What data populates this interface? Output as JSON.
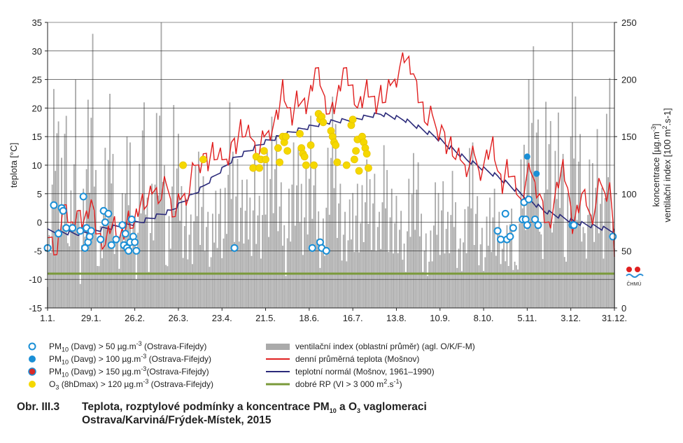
{
  "chart_data": {
    "type": "combo",
    "x_ticks": [
      "1.1.",
      "29.1.",
      "26.2.",
      "26.3.",
      "23.4.",
      "21.5.",
      "18.6.",
      "16.7.",
      "13.8.",
      "10.9.",
      "8.10.",
      "5.11.",
      "3.12.",
      "31.12."
    ],
    "x_tick_days": [
      1,
      29,
      57,
      85,
      113,
      141,
      169,
      197,
      225,
      253,
      281,
      309,
      337,
      365
    ],
    "y_left": {
      "label": "teplota [°C]",
      "ylim": [
        -15,
        35
      ],
      "ticks": [
        -15,
        -10,
        -5,
        0,
        5,
        10,
        15,
        20,
        25,
        30,
        35
      ]
    },
    "y_right": {
      "label_line1": "koncentrace [µg.m-3]",
      "label_line2": "ventilační index [100 m2.s-1]",
      "ylim": [
        0,
        250
      ],
      "ticks": [
        0,
        50,
        100,
        150,
        200,
        250
      ]
    },
    "grid": true,
    "good_dispersion_threshold": {
      "value_vi": 30,
      "color": "#7a9a3a"
    },
    "temperature_daily_anchors": [
      [
        1,
        -2
      ],
      [
        4,
        -4
      ],
      [
        7,
        -6
      ],
      [
        9,
        -1
      ],
      [
        11,
        3
      ],
      [
        14,
        1
      ],
      [
        17,
        -1
      ],
      [
        20,
        2
      ],
      [
        23,
        0
      ],
      [
        26,
        1
      ],
      [
        29,
        4
      ],
      [
        32,
        -1
      ],
      [
        35,
        -3
      ],
      [
        38,
        -4
      ],
      [
        41,
        -1
      ],
      [
        44,
        0
      ],
      [
        47,
        -3
      ],
      [
        50,
        -2
      ],
      [
        53,
        1
      ],
      [
        56,
        -1
      ],
      [
        59,
        2
      ],
      [
        62,
        4
      ],
      [
        65,
        3
      ],
      [
        68,
        6
      ],
      [
        71,
        5
      ],
      [
        74,
        4
      ],
      [
        77,
        8
      ],
      [
        80,
        3
      ],
      [
        83,
        1
      ],
      [
        86,
        5
      ],
      [
        89,
        4
      ],
      [
        92,
        5
      ],
      [
        95,
        11
      ],
      [
        98,
        9
      ],
      [
        101,
        12
      ],
      [
        104,
        10
      ],
      [
        107,
        13
      ],
      [
        110,
        11
      ],
      [
        113,
        12
      ],
      [
        116,
        10
      ],
      [
        119,
        14
      ],
      [
        122,
        13
      ],
      [
        125,
        17
      ],
      [
        128,
        15
      ],
      [
        131,
        16
      ],
      [
        134,
        13
      ],
      [
        137,
        12
      ],
      [
        140,
        16
      ],
      [
        143,
        15
      ],
      [
        146,
        17
      ],
      [
        149,
        19
      ],
      [
        152,
        24
      ],
      [
        155,
        20
      ],
      [
        158,
        18
      ],
      [
        161,
        22
      ],
      [
        164,
        21
      ],
      [
        167,
        20
      ],
      [
        170,
        23
      ],
      [
        173,
        27
      ],
      [
        176,
        25
      ],
      [
        179,
        21
      ],
      [
        182,
        19
      ],
      [
        185,
        20
      ],
      [
        188,
        23
      ],
      [
        191,
        27
      ],
      [
        194,
        25
      ],
      [
        197,
        23
      ],
      [
        200,
        20
      ],
      [
        203,
        21
      ],
      [
        206,
        24
      ],
      [
        209,
        22
      ],
      [
        212,
        20
      ],
      [
        215,
        23
      ],
      [
        218,
        21
      ],
      [
        221,
        25
      ],
      [
        224,
        24
      ],
      [
        227,
        27
      ],
      [
        230,
        29
      ],
      [
        233,
        28
      ],
      [
        236,
        26
      ],
      [
        239,
        22
      ],
      [
        242,
        20
      ],
      [
        245,
        17
      ],
      [
        248,
        20
      ],
      [
        251,
        15
      ],
      [
        254,
        17
      ],
      [
        257,
        13
      ],
      [
        260,
        14
      ],
      [
        263,
        11
      ],
      [
        266,
        12
      ],
      [
        269,
        9
      ],
      [
        272,
        10
      ],
      [
        275,
        13
      ],
      [
        278,
        8
      ],
      [
        281,
        10
      ],
      [
        284,
        12
      ],
      [
        287,
        14
      ],
      [
        290,
        9
      ],
      [
        293,
        6
      ],
      [
        296,
        10
      ],
      [
        299,
        8
      ],
      [
        302,
        6
      ],
      [
        305,
        3
      ],
      [
        308,
        7
      ],
      [
        311,
        10
      ],
      [
        314,
        6
      ],
      [
        317,
        5
      ],
      [
        320,
        1
      ],
      [
        323,
        -1
      ],
      [
        326,
        3
      ],
      [
        329,
        7
      ],
      [
        332,
        10
      ],
      [
        335,
        6
      ],
      [
        338,
        -1
      ],
      [
        341,
        2
      ],
      [
        344,
        5
      ],
      [
        347,
        4
      ],
      [
        350,
        0
      ],
      [
        353,
        3
      ],
      [
        356,
        8
      ],
      [
        359,
        4
      ],
      [
        362,
        7
      ],
      [
        365,
        -5
      ]
    ],
    "temperature_normal_anchors": [
      [
        1,
        -1.5
      ],
      [
        20,
        -2
      ],
      [
        40,
        -1
      ],
      [
        60,
        0
      ],
      [
        80,
        2
      ],
      [
        100,
        6
      ],
      [
        120,
        11
      ],
      [
        140,
        14
      ],
      [
        160,
        16
      ],
      [
        180,
        17.5
      ],
      [
        197,
        18
      ],
      [
        215,
        19
      ],
      [
        230,
        18
      ],
      [
        250,
        15
      ],
      [
        270,
        11
      ],
      [
        290,
        8
      ],
      [
        305,
        5
      ],
      [
        320,
        2
      ],
      [
        340,
        0
      ],
      [
        365,
        -1.5
      ]
    ],
    "pm10_over_50": [
      [
        1,
        -4.5
      ],
      [
        5,
        3
      ],
      [
        8,
        -2
      ],
      [
        10,
        2.5
      ],
      [
        11,
        2
      ],
      [
        13,
        -1
      ],
      [
        17,
        -1
      ],
      [
        22,
        -1.5
      ],
      [
        24,
        4.5
      ],
      [
        25,
        -4.5
      ],
      [
        26,
        -1
      ],
      [
        27,
        -3.5
      ],
      [
        28,
        -2.5
      ],
      [
        29,
        -1.5
      ],
      [
        35,
        -3
      ],
      [
        37,
        2
      ],
      [
        38,
        0
      ],
      [
        40,
        1.5
      ],
      [
        42,
        -4
      ],
      [
        45,
        -3
      ],
      [
        49,
        -0.5
      ],
      [
        50,
        -4
      ],
      [
        51,
        -2
      ],
      [
        52,
        -4.5
      ],
      [
        53,
        -5
      ],
      [
        54,
        -3.5
      ],
      [
        55,
        0.5
      ],
      [
        56,
        -2.5
      ],
      [
        57,
        -3.5
      ],
      [
        58,
        -5
      ],
      [
        121,
        -4.5
      ],
      [
        171,
        -4.5
      ],
      [
        176,
        -3.5
      ],
      [
        177,
        -4.5
      ],
      [
        180,
        -5
      ],
      [
        290,
        -1.5
      ],
      [
        292,
        -3
      ],
      [
        295,
        1.5
      ],
      [
        296,
        -3
      ],
      [
        298,
        -2.5
      ],
      [
        300,
        -1
      ],
      [
        306,
        0.5
      ],
      [
        307,
        3.5
      ],
      [
        308,
        0.5
      ],
      [
        309,
        -0.5
      ],
      [
        310,
        4
      ],
      [
        314,
        0.5
      ],
      [
        316,
        -0.5
      ],
      [
        338,
        -0.5
      ],
      [
        339,
        -0.5
      ],
      [
        364,
        -2.5
      ]
    ],
    "pm10_over_100": [
      [
        309,
        11.5
      ],
      [
        315,
        8.5
      ]
    ],
    "o3_over_120": [
      [
        88,
        10
      ],
      [
        101,
        11
      ],
      [
        133,
        9.5
      ],
      [
        135,
        11.5
      ],
      [
        137,
        9.5
      ],
      [
        138,
        11
      ],
      [
        140,
        12.5
      ],
      [
        141,
        11
      ],
      [
        149,
        13
      ],
      [
        150,
        10.5
      ],
      [
        152,
        15
      ],
      [
        153,
        14
      ],
      [
        154,
        15
      ],
      [
        155,
        12.5
      ],
      [
        163,
        15.5
      ],
      [
        164,
        13
      ],
      [
        165,
        12
      ],
      [
        166,
        11.5
      ],
      [
        167,
        10
      ],
      [
        170,
        13.5
      ],
      [
        172,
        10
      ],
      [
        175,
        19
      ],
      [
        176,
        18
      ],
      [
        177,
        18.5
      ],
      [
        178,
        17.5
      ],
      [
        183,
        16
      ],
      [
        184,
        15
      ],
      [
        185,
        14
      ],
      [
        186,
        13.5
      ],
      [
        187,
        10.5
      ],
      [
        193,
        10
      ],
      [
        196,
        17
      ],
      [
        197,
        18
      ],
      [
        198,
        11
      ],
      [
        199,
        12.5
      ],
      [
        200,
        14.5
      ],
      [
        201,
        9
      ],
      [
        203,
        15
      ],
      [
        204,
        14
      ],
      [
        205,
        13
      ],
      [
        206,
        12
      ],
      [
        207,
        9.5
      ]
    ],
    "ventilation_peaks": [
      [
        1,
        30
      ],
      [
        4,
        160
      ],
      [
        6,
        250
      ],
      [
        9,
        120
      ],
      [
        12,
        250
      ],
      [
        15,
        80
      ],
      [
        19,
        200
      ],
      [
        22,
        60
      ],
      [
        26,
        180
      ],
      [
        30,
        240
      ],
      [
        34,
        60
      ],
      [
        38,
        150
      ],
      [
        42,
        200
      ],
      [
        46,
        70
      ],
      [
        50,
        120
      ],
      [
        54,
        180
      ],
      [
        58,
        60
      ],
      [
        62,
        210
      ],
      [
        66,
        90
      ],
      [
        70,
        160
      ],
      [
        74,
        250
      ],
      [
        78,
        60
      ],
      [
        82,
        190
      ],
      [
        86,
        140
      ],
      [
        90,
        110
      ],
      [
        94,
        80
      ],
      [
        98,
        170
      ],
      [
        102,
        120
      ],
      [
        106,
        60
      ],
      [
        110,
        150
      ],
      [
        114,
        90
      ],
      [
        118,
        180
      ],
      [
        122,
        160
      ],
      [
        126,
        120
      ],
      [
        130,
        110
      ],
      [
        134,
        150
      ],
      [
        138,
        90
      ],
      [
        142,
        170
      ],
      [
        146,
        200
      ],
      [
        150,
        120
      ],
      [
        154,
        80
      ],
      [
        158,
        160
      ],
      [
        162,
        140
      ],
      [
        166,
        130
      ],
      [
        170,
        180
      ],
      [
        174,
        110
      ],
      [
        178,
        90
      ],
      [
        182,
        170
      ],
      [
        186,
        200
      ],
      [
        190,
        100
      ],
      [
        194,
        80
      ],
      [
        198,
        140
      ],
      [
        202,
        110
      ],
      [
        206,
        130
      ],
      [
        210,
        150
      ],
      [
        214,
        90
      ],
      [
        218,
        160
      ],
      [
        222,
        120
      ],
      [
        226,
        100
      ],
      [
        230,
        70
      ],
      [
        234,
        150
      ],
      [
        238,
        140
      ],
      [
        242,
        90
      ],
      [
        246,
        60
      ],
      [
        250,
        110
      ],
      [
        254,
        140
      ],
      [
        258,
        90
      ],
      [
        262,
        130
      ],
      [
        266,
        70
      ],
      [
        270,
        100
      ],
      [
        274,
        180
      ],
      [
        278,
        90
      ],
      [
        282,
        60
      ],
      [
        286,
        140
      ],
      [
        290,
        100
      ],
      [
        294,
        60
      ],
      [
        298,
        120
      ],
      [
        302,
        40
      ],
      [
        306,
        160
      ],
      [
        310,
        230
      ],
      [
        314,
        250
      ],
      [
        318,
        80
      ],
      [
        322,
        250
      ],
      [
        326,
        100
      ],
      [
        330,
        250
      ],
      [
        334,
        60
      ],
      [
        338,
        250
      ],
      [
        342,
        210
      ],
      [
        346,
        70
      ],
      [
        350,
        150
      ],
      [
        354,
        180
      ],
      [
        358,
        90
      ],
      [
        362,
        250
      ],
      [
        365,
        60
      ]
    ]
  },
  "legend": {
    "pm10_50": {
      "pm": "PM",
      "sub": "10",
      "mid": " (Davg) > 50 µg.m",
      "sup": "-3",
      "tail": " (Ostrava-Fifejdy)",
      "color": "#1a8fd6"
    },
    "pm10_100": {
      "pm": "PM",
      "sub": "10",
      "mid": " (Davg) > 100 µg.m",
      "sup": "-3",
      "tail": " (Ostrava-Fifejdy)",
      "color": "#1a8fd6"
    },
    "pm10_150": {
      "pm": "PM",
      "sub": "10",
      "mid": " (Davg) > 150 µg.m",
      "sup": "-3",
      "tail": "(Ostrava-Fifejdy)",
      "color": "#d62a2a"
    },
    "o3": {
      "pm": "O",
      "sub": "3",
      "mid": " (8hDmax) > 120 µg.m",
      "sup": "-3",
      "tail": " (Ostrava-Fifejdy)",
      "color": "#f5d800"
    },
    "vent": {
      "text": "ventilační index (oblastní průměr) (agl. O/K/F-M)",
      "color": "#aaaaaa"
    },
    "temp": {
      "text": "denní průměrná teplota (Mošnov)",
      "color": "#e02020"
    },
    "normal": {
      "text": "teplotní normál (Mošnov, 1961–1990)",
      "color": "#2b2a7a"
    },
    "goodrp": {
      "pre": "dobré RP (VI > 3 000 m",
      "sup": "2",
      "mid": ".s",
      "sup2": "-1",
      "post": ")",
      "color": "#7a9a3a"
    }
  },
  "caption": {
    "number": "Obr. III.3",
    "line1_pre": "Teplota, rozptylové podmínky a koncentrace PM",
    "line1_sub": "10",
    "line1_mid": " a O",
    "line1_sub2": "3",
    "line1_post": " vaglomeraci",
    "line2": "Ostrava/Karviná/Frýdek-Místek, 2015"
  },
  "logo": {
    "text": "ČHMÚ"
  }
}
